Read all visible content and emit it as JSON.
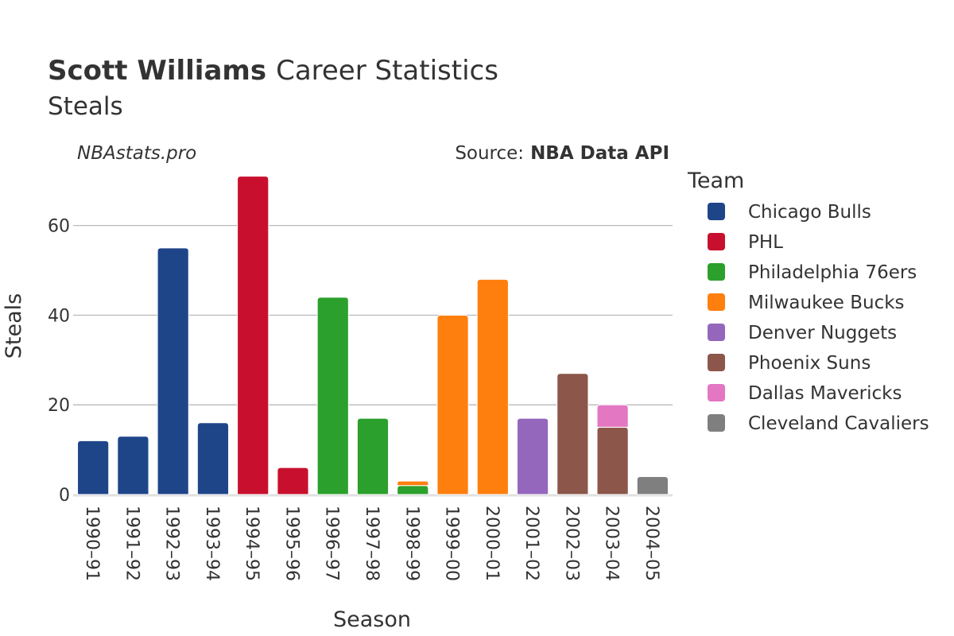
{
  "header": {
    "player_name": "Scott Williams",
    "title_suffix": "Career Statistics",
    "subtitle": "Steals",
    "site": "NBAstats.pro",
    "source_label": "Source:",
    "source_value": "NBA Data API"
  },
  "chart_data": {
    "type": "bar",
    "stacked": true,
    "title": "Scott Williams Career Statistics",
    "subtitle": "Steals",
    "xlabel": "Season",
    "ylabel": "Steals",
    "ylim": [
      0,
      72
    ],
    "yticks": [
      0,
      20,
      40,
      60
    ],
    "grid": true,
    "legend_title": "Team",
    "legend_position": "right",
    "categories": [
      "1990–91",
      "1991–92",
      "1992–93",
      "1993–94",
      "1994–95",
      "1995–96",
      "1996–97",
      "1997–98",
      "1998–99",
      "1999–00",
      "2000–01",
      "2001–02",
      "2002–03",
      "2003–04",
      "2004–05"
    ],
    "series": [
      {
        "name": "Chicago Bulls",
        "color": "#1f4589",
        "values": [
          12,
          13,
          55,
          16,
          0,
          0,
          0,
          0,
          0,
          0,
          0,
          0,
          0,
          0,
          0
        ]
      },
      {
        "name": "PHL",
        "color": "#c8102e",
        "values": [
          0,
          0,
          0,
          0,
          71,
          6,
          0,
          0,
          0,
          0,
          0,
          0,
          0,
          0,
          0
        ]
      },
      {
        "name": "Philadelphia 76ers",
        "color": "#2ca02c",
        "values": [
          0,
          0,
          0,
          0,
          0,
          0,
          44,
          17,
          2,
          0,
          0,
          0,
          0,
          0,
          0
        ]
      },
      {
        "name": "Milwaukee Bucks",
        "color": "#ff7f0e",
        "values": [
          0,
          0,
          0,
          0,
          0,
          0,
          0,
          0,
          1,
          40,
          48,
          0,
          0,
          0,
          0
        ]
      },
      {
        "name": "Denver Nuggets",
        "color": "#9467bd",
        "values": [
          0,
          0,
          0,
          0,
          0,
          0,
          0,
          0,
          0,
          0,
          0,
          17,
          0,
          0,
          0
        ]
      },
      {
        "name": "Phoenix Suns",
        "color": "#8c564b",
        "values": [
          0,
          0,
          0,
          0,
          0,
          0,
          0,
          0,
          0,
          0,
          0,
          0,
          27,
          15,
          0
        ]
      },
      {
        "name": "Dallas Mavericks",
        "color": "#e377c2",
        "values": [
          0,
          0,
          0,
          0,
          0,
          0,
          0,
          0,
          0,
          0,
          0,
          0,
          0,
          5,
          0
        ]
      },
      {
        "name": "Cleveland Cavaliers",
        "color": "#7f7f7f",
        "values": [
          0,
          0,
          0,
          0,
          0,
          0,
          0,
          0,
          0,
          0,
          0,
          0,
          0,
          0,
          4
        ]
      }
    ]
  }
}
